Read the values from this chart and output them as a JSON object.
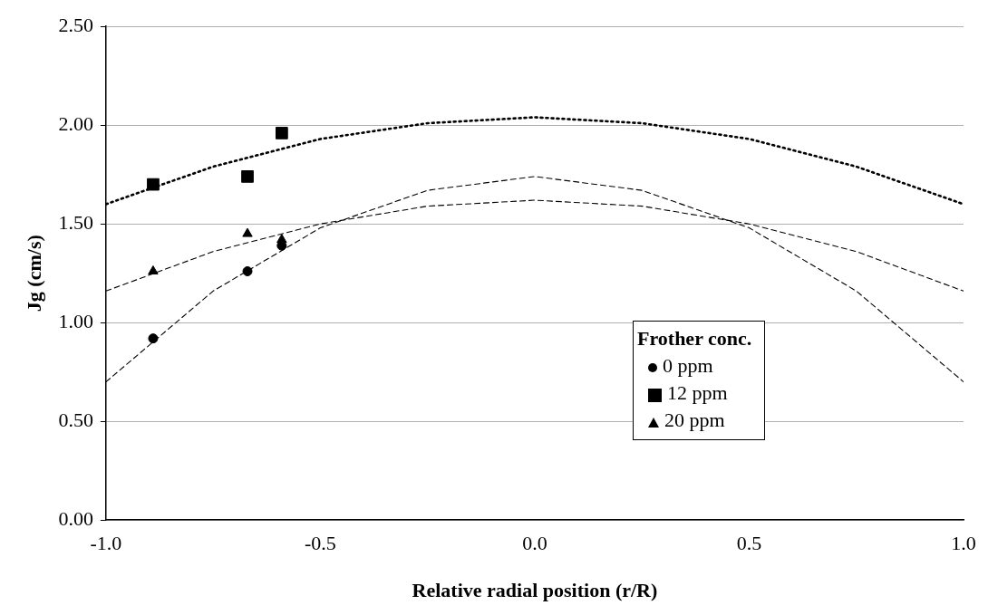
{
  "chart_data": {
    "type": "scatter",
    "xlabel": "Relative radial position (r/R)",
    "ylabel": "Jg (cm/s)",
    "legend_title": "Frother conc.",
    "legend": "bottom right",
    "grid": "y",
    "xlim": [
      -1,
      1
    ],
    "xticks": [
      {
        "value": -1,
        "label": "-1.0"
      },
      {
        "value": -0.5,
        "label": "-0.5"
      },
      {
        "value": 0,
        "label": "0.0"
      },
      {
        "value": 0.5,
        "label": "0.5"
      },
      {
        "value": 1,
        "label": "1.0"
      }
    ],
    "ylim": [
      0,
      2.5
    ],
    "yticks": [
      {
        "value": 0,
        "label": "0.00"
      },
      {
        "value": 0.5,
        "label": "0.50"
      },
      {
        "value": 1,
        "label": "1.00"
      },
      {
        "value": 1.5,
        "label": "1.50"
      },
      {
        "value": 2,
        "label": "2.00"
      },
      {
        "value": 2.5,
        "label": "2.50"
      }
    ],
    "series": [
      {
        "type": "line",
        "marker": "none",
        "line_style": "dashed",
        "color": "#000000",
        "x": [
          -1,
          -0.75,
          -0.5,
          -0.25,
          0,
          0.25,
          0.5,
          0.75,
          1
        ],
        "values": [
          0.7,
          1.16,
          1.48,
          1.67,
          1.74,
          1.67,
          1.48,
          1.16,
          0.7
        ]
      },
      {
        "type": "line",
        "marker": "none",
        "line_style": "dotted",
        "color": "#000000",
        "x": [
          -1,
          -0.75,
          -0.5,
          -0.25,
          0,
          0.25,
          0.5,
          0.75,
          1
        ],
        "values": [
          1.6,
          1.79,
          1.93,
          2.01,
          2.04,
          2.01,
          1.93,
          1.79,
          1.6
        ]
      },
      {
        "type": "line",
        "marker": "none",
        "line_style": "dashed",
        "color": "#000000",
        "x": [
          -1,
          -0.75,
          -0.5,
          -0.25,
          0,
          0.25,
          0.5,
          0.75,
          1
        ],
        "values": [
          1.16,
          1.36,
          1.5,
          1.59,
          1.62,
          1.59,
          1.5,
          1.36,
          1.16
        ]
      },
      {
        "type": "scatter",
        "name": "0 ppm",
        "marker": "circle",
        "color": "#000000",
        "x": [
          -0.89,
          -0.67,
          -0.59
        ],
        "values": [
          0.92,
          1.26,
          1.39
        ]
      },
      {
        "type": "scatter",
        "name": "12 ppm",
        "marker": "square",
        "color": "#000000",
        "x": [
          -0.89,
          -0.67,
          -0.59
        ],
        "values": [
          1.7,
          1.74,
          1.96
        ]
      },
      {
        "type": "scatter",
        "name": "20 ppm",
        "marker": "triangle",
        "color": "#000000",
        "x": [
          -0.89,
          -0.67,
          -0.59
        ],
        "values": [
          1.26,
          1.45,
          1.42
        ]
      }
    ]
  }
}
